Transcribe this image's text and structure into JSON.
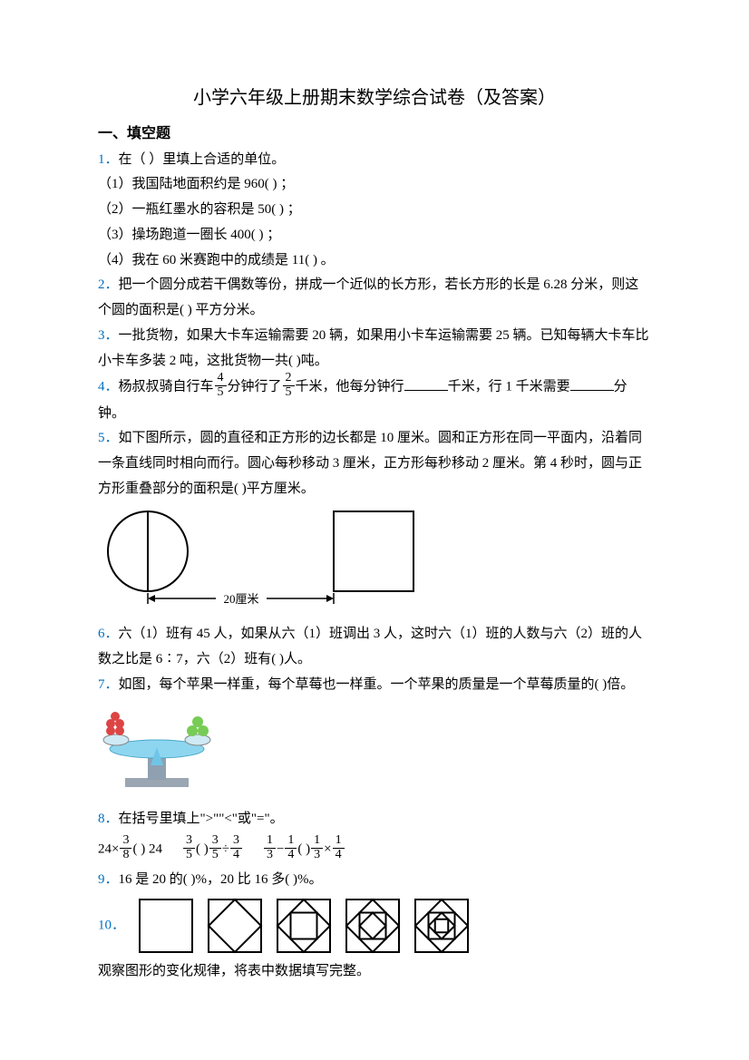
{
  "colors": {
    "accent": "#0070c0",
    "text": "#000000"
  },
  "title": "小学六年级上册期末数学综合试卷（及答案）",
  "section1": "一、填空题",
  "q1": {
    "num": "1．",
    "prompt": "在（    ）里填上合适的单位。",
    "l1": "（1）我国陆地面积约是 960(       ) ；",
    "l2": "（2）一瓶红墨水的容积是 50(       ) ；",
    "l3": "（3）操场跑道一圈长 400(       ) ；",
    "l4": "（4）我在 60 米赛跑中的成绩是 11(       ) 。"
  },
  "q2": {
    "num": "2．",
    "text": "把一个圆分成若干偶数等份，拼成一个近似的长方形，若长方形的长是 6.28 分米，则这个圆的面积是(       ) 平方分米。"
  },
  "q3": {
    "num": "3．",
    "text": "一批货物，如果大卡车运输需要 20 辆，如果用小卡车运输需要 25 辆。已知每辆大卡车比小卡车多装 2 吨，这批货物一共(      )吨。"
  },
  "q4": {
    "num": "4．",
    "p1": "杨叔叔骑自行车",
    "f1n": "4",
    "f1d": "5",
    "p2": "分钟行了",
    "f2n": "2",
    "f2d": "5",
    "p3": "千米，他每分钟行",
    "p4": "千米，行 1 千米需要",
    "p5": "分",
    "p6": "钟。"
  },
  "q5": {
    "num": "5．",
    "text": "如下图所示，圆的直径和正方形的边长都是 10 厘米。圆和正方形在同一平面内，沿着同一条直线同时相向而行。圆心每秒移动 3 厘米，正方形每秒移动 2 厘米。第 4 秒时，圆与正方形重叠部分的面积是(      )平方厘米。"
  },
  "q5_diagram": {
    "label": "20厘米",
    "circle_stroke": "#000000",
    "square_stroke": "#000000",
    "stroke_width": 2
  },
  "q6": {
    "num": "6．",
    "text": "六（1）班有 45 人，如果从六（1）班调出 3 人，这时六（1）班的人数与六（2）班的人数之比是 6∶7，六（2）班有(      )人。"
  },
  "q7": {
    "num": "7．",
    "text": "如图，每个苹果一样重，每个草莓也一样重。一个苹果的质量是一个草莓质量的(      )倍。"
  },
  "q8": {
    "num": "8．",
    "text": "在括号里填上\">\"\"<\"或\"=\"。"
  },
  "q8_items": {
    "a_pre": "24×",
    "a_fn": "3",
    "a_fd": "8",
    "a_post": "(       ) 24",
    "b_f1n": "3",
    "b_f1d": "5",
    "b_mid": "(       )",
    "b_f2n": "3",
    "b_f2d": "5",
    "b_op": "÷",
    "b_f3n": "3",
    "b_f3d": "4",
    "c_f1n": "1",
    "c_f1d": "3",
    "c_op1": "−",
    "c_f2n": "1",
    "c_f2d": "4",
    "c_mid": "(       )",
    "c_f3n": "1",
    "c_f3d": "3",
    "c_op2": "×",
    "c_f4n": "1",
    "c_f4d": "4"
  },
  "q9": {
    "num": "9．",
    "text": "16 是 20 的(       )%，20 比 16 多(       )%。"
  },
  "q10": {
    "num": "10．",
    "shapes": {
      "stroke": "#000000",
      "stroke_width": 2,
      "outer_size": 62,
      "levels": [
        1,
        2,
        3,
        4,
        5
      ]
    },
    "caption": "观察图形的变化规律，将表中数据填写完整。"
  },
  "balance_colors": {
    "frame": "#7a8a99",
    "beam": "#6fc5e8",
    "items_left": "#d44",
    "items_right": "#5b5"
  }
}
